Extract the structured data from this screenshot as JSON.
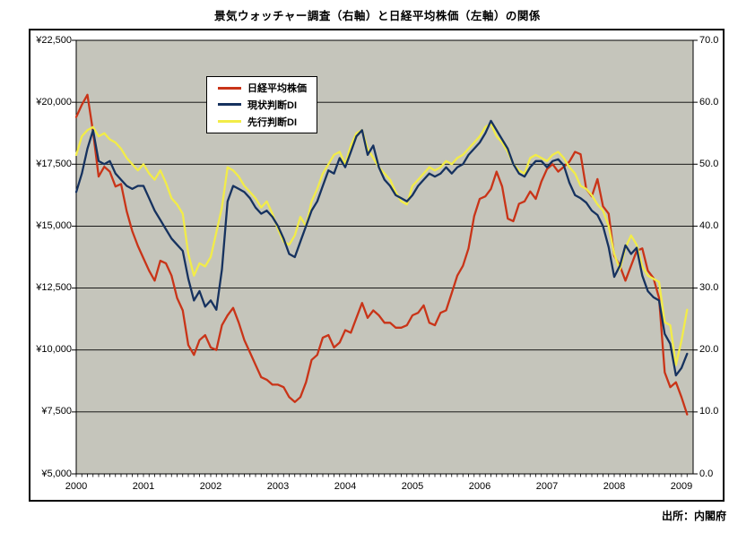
{
  "chart_data": {
    "type": "line",
    "title": "景気ウォッチャー調査（右軸）と日経平均株価（左軸）の関係",
    "source": "出所：内閣府",
    "frequency": "monthly",
    "x_start": "2000-01",
    "x_end": "2009-02",
    "x_axis": {
      "year_labels": [
        "2000",
        "2001",
        "2002",
        "2003",
        "2004",
        "2005",
        "2006",
        "2007",
        "2008",
        "2009"
      ]
    },
    "left_axis": {
      "min": 5000,
      "max": 22500,
      "unit": "yen",
      "labels": [
        "¥22,500",
        "¥20,000",
        "¥17,500",
        "¥15,000",
        "¥12,500",
        "¥10,000",
        "¥7,500",
        "¥5,000"
      ]
    },
    "right_axis": {
      "min": 0,
      "max": 70,
      "unit": "DI",
      "labels": [
        "70.0",
        "60.0",
        "50.0",
        "40.0",
        "30.0",
        "20.0",
        "10.0",
        "0.0"
      ]
    },
    "grid": true,
    "legend_position": "top-left-inside",
    "series": [
      {
        "key": "nikkei",
        "name": "日経平均株価",
        "axis": "left",
        "color": "#C93418",
        "values": [
          19400,
          19900,
          20300,
          18800,
          17000,
          17400,
          17200,
          16600,
          16700,
          15600,
          14800,
          14200,
          13700,
          13200,
          12800,
          13600,
          13500,
          13000,
          12100,
          11600,
          10200,
          9800,
          10400,
          10600,
          10100,
          10000,
          11000,
          11400,
          11700,
          11100,
          10400,
          9900,
          9400,
          8900,
          8800,
          8600,
          8600,
          8500,
          8100,
          7900,
          8100,
          8700,
          9600,
          9800,
          10500,
          10600,
          10100,
          10300,
          10800,
          10700,
          11300,
          11900,
          11300,
          11600,
          11400,
          11100,
          11100,
          10900,
          10900,
          11000,
          11400,
          11500,
          11800,
          11100,
          11000,
          11500,
          11600,
          12300,
          13000,
          13400,
          14100,
          15400,
          16100,
          16200,
          16500,
          17200,
          16600,
          15300,
          15200,
          15900,
          16000,
          16400,
          16100,
          16800,
          17300,
          17500,
          17200,
          17400,
          17600,
          18000,
          17900,
          16500,
          16200,
          16900,
          15800,
          15500,
          13800,
          13400,
          12800,
          13400,
          14000,
          14100,
          13200,
          12900,
          12100,
          9100,
          8500,
          8700,
          8100,
          7400
        ]
      },
      {
        "key": "genjo",
        "name": "現状判断DI",
        "axis": "right",
        "color": "#16325F",
        "values": [
          45.5,
          48.5,
          52.5,
          55.5,
          50.5,
          50.0,
          50.5,
          48.5,
          47.5,
          46.5,
          46.0,
          46.5,
          46.5,
          44.5,
          42.5,
          41.0,
          39.5,
          38.0,
          37.0,
          36.0,
          31.5,
          28.0,
          29.5,
          27.0,
          28.0,
          26.5,
          33.0,
          44.0,
          46.5,
          46.0,
          45.5,
          44.5,
          43.0,
          42.0,
          42.5,
          41.5,
          40.0,
          38.0,
          35.5,
          35.0,
          37.5,
          40.0,
          42.5,
          44.0,
          46.5,
          49.0,
          48.5,
          51.0,
          49.5,
          52.0,
          54.5,
          55.5,
          51.5,
          53.0,
          49.5,
          47.5,
          46.5,
          45.0,
          44.5,
          44.0,
          45.0,
          46.5,
          47.5,
          48.5,
          48.0,
          48.5,
          49.5,
          48.5,
          49.5,
          50.0,
          51.5,
          52.5,
          53.5,
          55.0,
          57.0,
          55.5,
          54.0,
          52.5,
          50.0,
          48.5,
          48.0,
          49.5,
          50.5,
          50.5,
          49.5,
          50.5,
          50.8,
          49.8,
          47.0,
          45.0,
          44.5,
          43.8,
          42.5,
          41.8,
          40.0,
          36.6,
          31.8,
          33.6,
          36.9,
          35.5,
          36.5,
          32.0,
          29.5,
          28.5,
          28.0,
          22.6,
          21.0,
          15.9,
          17.1,
          19.4
        ]
      },
      {
        "key": "senko",
        "name": "先行判断DI",
        "axis": "right",
        "color": "#F2EC48",
        "values": [
          51.5,
          54.5,
          55.5,
          56.0,
          54.5,
          55.0,
          54.0,
          53.5,
          52.5,
          51.0,
          50.0,
          49.0,
          50.0,
          48.5,
          47.5,
          49.0,
          47.0,
          44.5,
          43.5,
          42.0,
          35.5,
          32.0,
          34.0,
          33.5,
          35.0,
          39.0,
          43.0,
          49.5,
          49.0,
          48.0,
          46.5,
          45.5,
          44.5,
          43.0,
          44.0,
          42.0,
          39.5,
          37.5,
          37.0,
          38.5,
          41.5,
          40.0,
          44.0,
          46.0,
          48.5,
          50.0,
          51.5,
          52.0,
          50.0,
          53.0,
          55.0,
          55.5,
          52.5,
          51.0,
          49.5,
          48.5,
          47.5,
          45.5,
          44.0,
          43.5,
          46.5,
          47.5,
          48.5,
          49.5,
          49.0,
          49.5,
          50.5,
          50.0,
          51.0,
          51.5,
          52.5,
          53.5,
          54.5,
          56.0,
          56.5,
          54.5,
          53.5,
          52.0,
          50.0,
          49.0,
          48.5,
          51.0,
          51.5,
          51.0,
          50.5,
          51.5,
          52.0,
          51.0,
          49.5,
          48.5,
          46.5,
          46.0,
          45.0,
          43.5,
          42.5,
          40.0,
          35.5,
          33.0,
          36.5,
          38.5,
          37.0,
          33.5,
          32.0,
          31.5,
          31.0,
          24.5,
          24.0,
          17.6,
          21.5,
          26.5
        ]
      }
    ]
  },
  "legend": {
    "items": [
      {
        "key": "nikkei",
        "label": "日経平均株価"
      },
      {
        "key": "genjo",
        "label": "現状判断DI"
      },
      {
        "key": "senko",
        "label": "先行判断DI"
      }
    ]
  },
  "colors": {
    "plot_bg": "#C5C5BB",
    "grid": "#000000",
    "frame_border": "#000000",
    "nikkei": "#C93418",
    "genjo": "#16325F",
    "senko": "#F2EC48"
  }
}
